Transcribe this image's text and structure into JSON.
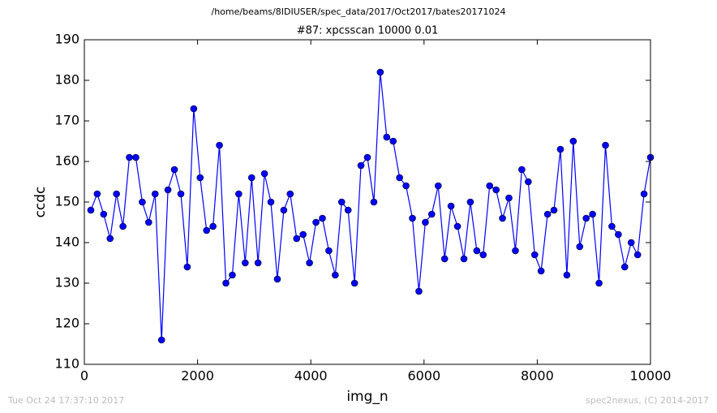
{
  "chart_data": {
    "type": "line",
    "title": "/home/beams/8IDIUSER/spec_data/2017/Oct2017/bates20171024",
    "subtitle": "#87: xpcsscan 10000 0.01",
    "x_label": "img_n",
    "y_label": "ccdc",
    "footer_left": "Tue Oct 24 17:37:10 2017",
    "footer_right": "spec2nexus, (C) 2014-2017",
    "xlim": [
      0,
      10000
    ],
    "xticks": [
      0,
      2000,
      4000,
      6000,
      8000,
      10000
    ],
    "ylim": [
      110,
      190
    ],
    "yticks": [
      110,
      120,
      130,
      140,
      150,
      160,
      170,
      180,
      190
    ],
    "series": [
      {
        "color": "#0000ff",
        "x": [
          114,
          227,
          341,
          455,
          568,
          682,
          795,
          909,
          1023,
          1136,
          1250,
          1364,
          1477,
          1591,
          1705,
          1818,
          1932,
          2045,
          2159,
          2273,
          2386,
          2500,
          2614,
          2727,
          2841,
          2955,
          3068,
          3182,
          3295,
          3409,
          3523,
          3636,
          3750,
          3864,
          3977,
          4091,
          4205,
          4318,
          4432,
          4545,
          4659,
          4773,
          4886,
          5000,
          5114,
          5227,
          5341,
          5455,
          5568,
          5682,
          5795,
          5909,
          6023,
          6136,
          6250,
          6364,
          6477,
          6591,
          6705,
          6818,
          6932,
          7045,
          7159,
          7273,
          7386,
          7500,
          7614,
          7727,
          7841,
          7955,
          8068,
          8182,
          8295,
          8409,
          8523,
          8636,
          8750,
          8864,
          8977,
          9091,
          9205,
          9318,
          9432,
          9545,
          9659,
          9773,
          9886,
          10000
        ],
        "values": [
          148,
          152,
          147,
          141,
          152,
          144,
          161,
          161,
          150,
          145,
          152,
          116,
          153,
          158,
          152,
          134,
          173,
          156,
          143,
          144,
          164,
          130,
          132,
          152,
          135,
          156,
          135,
          157,
          150,
          131,
          148,
          152,
          141,
          142,
          135,
          145,
          146,
          138,
          132,
          150,
          148,
          130,
          159,
          161,
          150,
          182,
          166,
          165,
          156,
          154,
          146,
          128,
          145,
          147,
          154,
          136,
          149,
          144,
          136,
          150,
          138,
          137,
          154,
          153,
          146,
          151,
          138,
          158,
          155,
          137,
          133,
          147,
          148,
          163,
          132,
          165,
          139,
          146,
          147,
          130,
          164,
          144,
          142,
          134,
          140,
          137,
          152,
          161
        ]
      }
    ]
  }
}
